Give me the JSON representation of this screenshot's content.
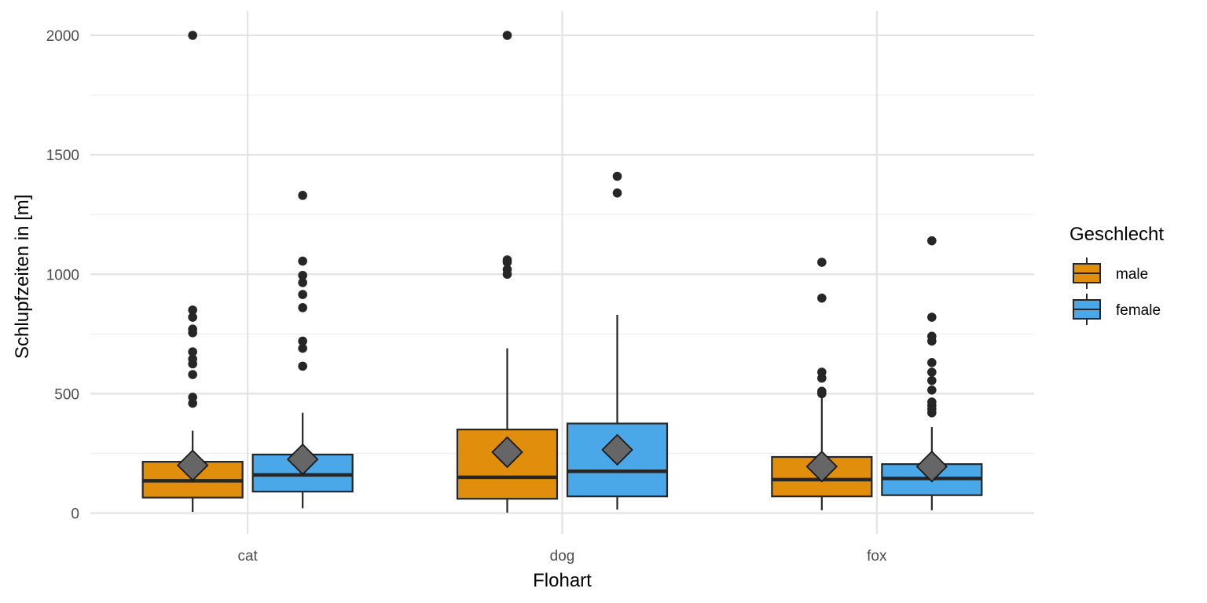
{
  "chart_data": {
    "type": "boxplot",
    "title": "",
    "xlabel": "Flohart",
    "ylabel": "Schlupfzeiten in [m]",
    "ylim": [
      -100,
      2100
    ],
    "yticks": [
      0,
      500,
      1000,
      1500,
      2000
    ],
    "grid": true,
    "categories": [
      "cat",
      "dog",
      "fox"
    ],
    "legend": {
      "title": "Geschlecht",
      "position": "right"
    },
    "mean_marker": {
      "shape": "diamond",
      "color": "#666666"
    },
    "series": [
      {
        "name": "male",
        "color": "#E08E0B",
        "boxes": [
          {
            "category": "cat",
            "lower_whisker": 5,
            "q1": 65,
            "median": 135,
            "q3": 215,
            "upper_whisker": 345,
            "mean": 200,
            "outliers": [
              460,
              485,
              580,
              625,
              645,
              675,
              755,
              770,
              820,
              850,
              2000
            ]
          },
          {
            "category": "dog",
            "lower_whisker": 2,
            "q1": 60,
            "median": 150,
            "q3": 350,
            "upper_whisker": 690,
            "mean": 255,
            "outliers": [
              1000,
              1020,
              1050,
              1060,
              2000
            ]
          },
          {
            "category": "fox",
            "lower_whisker": 12,
            "q1": 70,
            "median": 140,
            "q3": 235,
            "upper_whisker": 490,
            "mean": 195,
            "outliers": [
              500,
              510,
              565,
              590,
              900,
              1050
            ]
          }
        ]
      },
      {
        "name": "female",
        "color": "#4AA8E8",
        "boxes": [
          {
            "category": "cat",
            "lower_whisker": 20,
            "q1": 90,
            "median": 160,
            "q3": 245,
            "upper_whisker": 420,
            "mean": 225,
            "outliers": [
              615,
              690,
              720,
              860,
              915,
              965,
              995,
              1055,
              1330
            ]
          },
          {
            "category": "dog",
            "lower_whisker": 15,
            "q1": 70,
            "median": 175,
            "q3": 375,
            "upper_whisker": 830,
            "mean": 265,
            "outliers": [
              1340,
              1410
            ]
          },
          {
            "category": "fox",
            "lower_whisker": 12,
            "q1": 75,
            "median": 145,
            "q3": 205,
            "upper_whisker": 360,
            "mean": 195,
            "outliers": [
              420,
              435,
              450,
              465,
              515,
              555,
              590,
              630,
              720,
              740,
              820,
              1140
            ]
          }
        ]
      }
    ]
  }
}
